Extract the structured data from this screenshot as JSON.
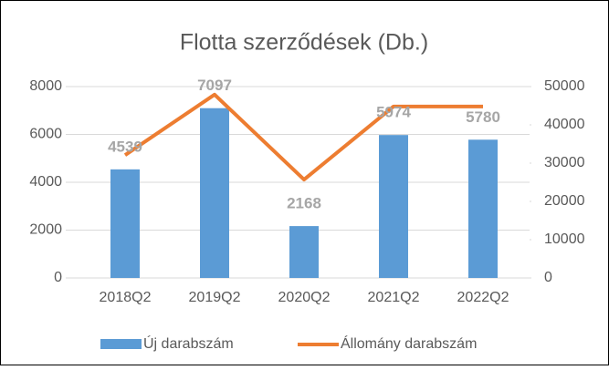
{
  "chart_data": {
    "type": "bar_line",
    "title": "Flotta szerződések (Db.)",
    "categories": [
      "2018Q2",
      "2019Q2",
      "2020Q2",
      "2021Q2",
      "2022Q2"
    ],
    "series": [
      {
        "name": "Új darabszám",
        "type": "bar",
        "color": "#5b9bd5",
        "values": [
          4539,
          7097,
          2168,
          5974,
          5780
        ]
      },
      {
        "name": "Állomány darabszám",
        "type": "line",
        "color": "#ed7d31",
        "axis": "y2",
        "values": [
          32100,
          47900,
          25700,
          44800,
          44800
        ]
      }
    ],
    "ylim": [
      0,
      8000
    ],
    "yticks": [
      0,
      2000,
      4000,
      6000,
      8000
    ],
    "y2lim": [
      0,
      50000
    ],
    "y2ticks": [
      0,
      10000,
      20000,
      30000,
      40000,
      50000
    ],
    "grid": true,
    "legend": "bottom"
  }
}
